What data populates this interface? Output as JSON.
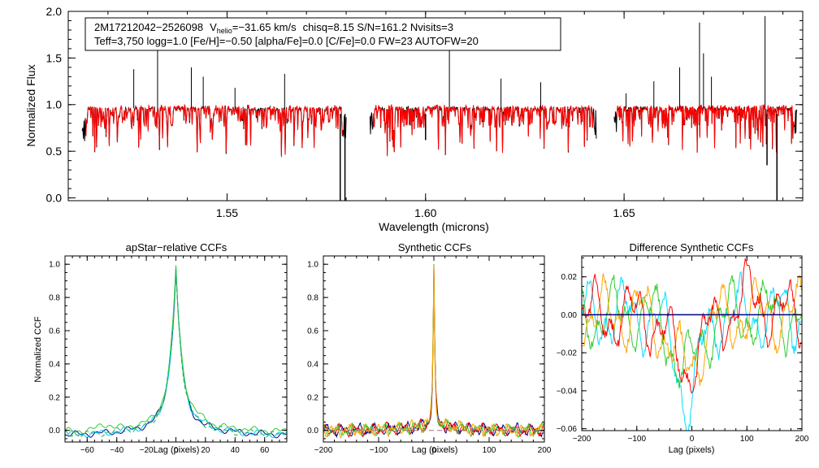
{
  "chart_data": [
    {
      "type": "line",
      "id": "spectrum",
      "title_line1": {
        "star": "2M17212042−2526098",
        "v_label": "V",
        "v_sub": "helio",
        "v_value": "=−31.65 km/s",
        "stats": "chisq=8.15  S/N=161.2  Nvisits=3"
      },
      "title_line2": "Teff=3,750 logg=1.0 [Fe/H]=−0.50 [alpha/Fe]=0.0 [C/Fe]=0.0 FW=23 AUTOFW=20",
      "xlabel": "Wavelength (microns)",
      "ylabel": "Normalized Flux",
      "xlim": [
        1.51,
        1.695
      ],
      "ylim": [
        -0.03,
        2.0
      ],
      "xticks": [
        1.55,
        1.6,
        1.65
      ],
      "xtick_labels": [
        "1.55",
        "1.60",
        "1.65"
      ],
      "yticks": [
        0.0,
        0.5,
        1.0,
        1.5,
        2.0
      ],
      "ytick_labels": [
        "0.0",
        "0.5",
        "1.0",
        "1.5",
        "2.0"
      ],
      "chips": [
        [
          1.5135,
          1.58
        ],
        [
          1.586,
          1.643
        ],
        [
          1.6475,
          1.6935
        ]
      ],
      "series": [
        {
          "name": "observed",
          "color": "#000000"
        },
        {
          "name": "model",
          "color": "#ff0000"
        }
      ],
      "emission_spikes": [
        {
          "x": 1.5265,
          "y": 1.38
        },
        {
          "x": 1.5325,
          "y": 1.62
        },
        {
          "x": 1.541,
          "y": 1.4
        },
        {
          "x": 1.544,
          "y": 1.3
        },
        {
          "x": 1.552,
          "y": 1.18
        },
        {
          "x": 1.5645,
          "y": 1.33
        },
        {
          "x": 1.606,
          "y": 1.62
        },
        {
          "x": 1.619,
          "y": 1.28
        },
        {
          "x": 1.629,
          "y": 1.24
        },
        {
          "x": 1.6505,
          "y": 1.12
        },
        {
          "x": 1.6575,
          "y": 1.25
        },
        {
          "x": 1.664,
          "y": 1.4
        },
        {
          "x": 1.672,
          "y": 1.3
        },
        {
          "x": 1.669,
          "y": 1.88
        },
        {
          "x": 1.67,
          "y": 1.55
        },
        {
          "x": 1.6855,
          "y": 1.95
        }
      ],
      "absorption_dips": [
        {
          "x": 1.5785,
          "y": -0.03
        },
        {
          "x": 1.5797,
          "y": -0.03
        },
        {
          "x": 1.6,
          "y": 0.62
        },
        {
          "x": 1.686,
          "y": 0.35
        },
        {
          "x": 1.6885,
          "y": -0.03
        }
      ]
    },
    {
      "type": "line",
      "id": "ccf1",
      "title": "apStar−relative CCFs",
      "xlabel": "Lag (pixels)",
      "ylabel": "Normalized CCF",
      "xlim": [
        -75,
        75
      ],
      "ylim": [
        -0.07,
        1.05
      ],
      "xticks": [
        -60,
        -40,
        -20,
        0,
        20,
        40,
        60
      ],
      "xtick_labels": [
        "−60",
        "−40",
        "−20",
        "0",
        "20",
        "40",
        "60"
      ],
      "yticks": [
        0.0,
        0.2,
        0.4,
        0.6,
        0.8,
        1.0
      ],
      "ytick_labels": [
        "0.0",
        "0.2",
        "0.4",
        "0.6",
        "0.8",
        "1.0"
      ],
      "peak": 1.0,
      "series": [
        {
          "name": "visit-1",
          "color": "#000080"
        },
        {
          "name": "visit-2",
          "color": "#00c8ff"
        },
        {
          "name": "visit-3",
          "color": "#33cc33"
        },
        {
          "name": "combined",
          "color": "#20b060",
          "dashed": true
        }
      ]
    },
    {
      "type": "line",
      "id": "ccf2",
      "title": "Synthetic CCFs",
      "xlabel": "Lag (pixels)",
      "xlim": [
        -200,
        200
      ],
      "ylim": [
        -0.07,
        1.05
      ],
      "xticks": [
        -200,
        -100,
        0,
        100,
        200
      ],
      "xtick_labels": [
        "−200",
        "−100",
        "0",
        "100",
        "200"
      ],
      "yticks": [
        0.0,
        0.2,
        0.4,
        0.6,
        0.8,
        1.0
      ],
      "ytick_labels": [
        "0.0",
        "0.2",
        "0.4",
        "0.6",
        "0.8",
        "1.0"
      ],
      "series": [
        {
          "name": "visit-1",
          "color": "#000080"
        },
        {
          "name": "visit-2",
          "color": "#ff0000"
        },
        {
          "name": "visit-3",
          "color": "#33cc33"
        },
        {
          "name": "visit-4",
          "color": "#ffa500"
        },
        {
          "name": "zero-line",
          "color": "#a07070",
          "dashed": true
        }
      ]
    },
    {
      "type": "line",
      "id": "ccf3",
      "title": "Difference Synthetic CCFs",
      "xlabel": "Lag (pixels)",
      "xlim": [
        -200,
        200
      ],
      "ylim": [
        -0.061,
        0.031
      ],
      "xticks": [
        -200,
        -100,
        0,
        100,
        200
      ],
      "xtick_labels": [
        "−200",
        "−100",
        "0",
        "100",
        "200"
      ],
      "yticks": [
        -0.06,
        -0.04,
        -0.02,
        0.0,
        0.02
      ],
      "ytick_labels": [
        "−0.06",
        "−0.04",
        "−0.02",
        "0.00",
        "0.02"
      ],
      "series": [
        {
          "name": "cyan",
          "color": "#00e0ff"
        },
        {
          "name": "green",
          "color": "#33cc33"
        },
        {
          "name": "orange",
          "color": "#ffa500"
        },
        {
          "name": "red",
          "color": "#ff0000"
        },
        {
          "name": "zero",
          "color": "#000080"
        }
      ]
    }
  ]
}
